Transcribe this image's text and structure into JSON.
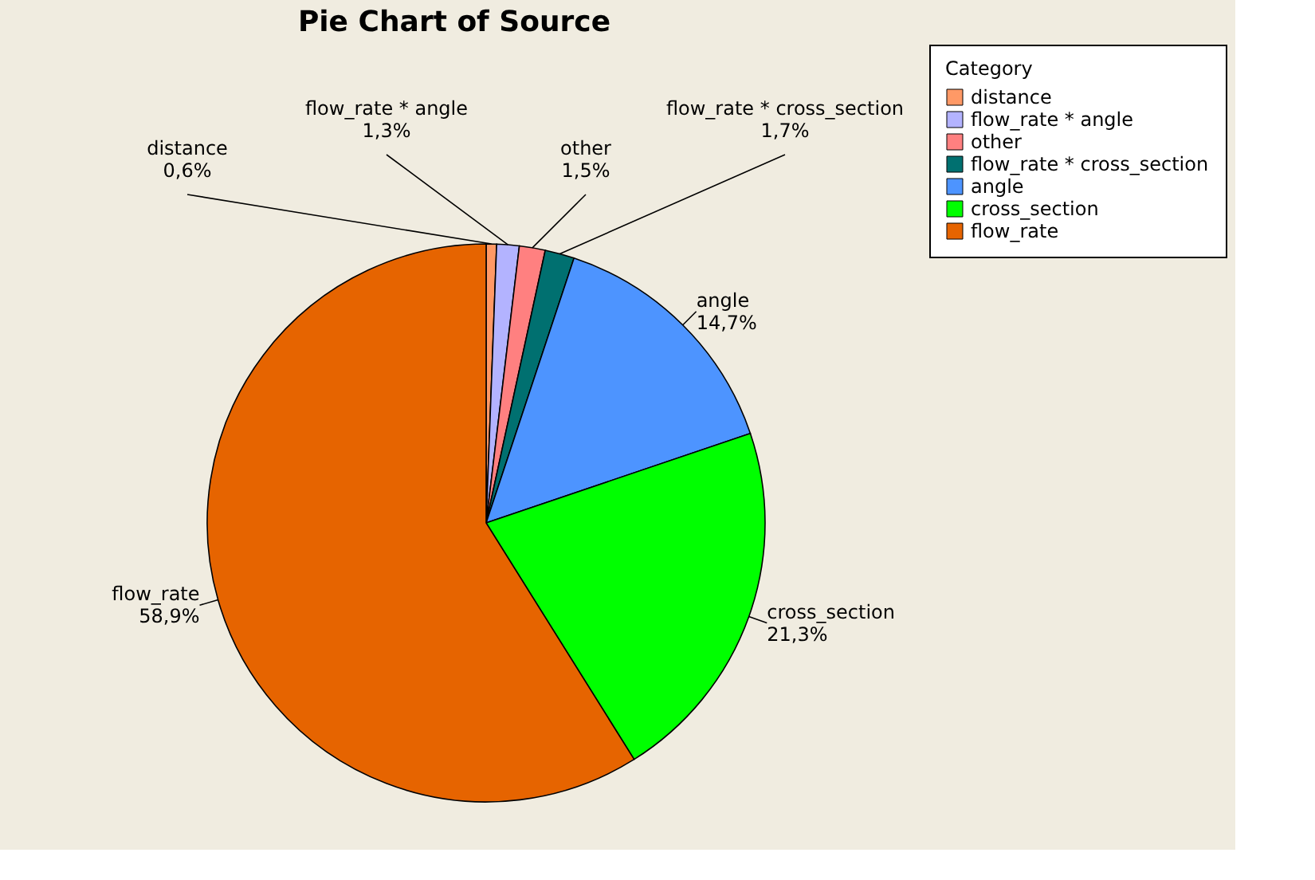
{
  "chart_data": {
    "type": "pie",
    "title": "Pie Chart of Source",
    "legend_title": "Category",
    "legend": "top right",
    "categories": [
      "distance",
      "flow_rate * angle",
      "other",
      "flow_rate * cross_section",
      "angle",
      "cross_section",
      "flow_rate"
    ],
    "values": [
      0.6,
      1.3,
      1.5,
      1.7,
      14.7,
      21.3,
      58.9
    ],
    "value_labels": [
      "0,6%",
      "1,3%",
      "1,5%",
      "1,7%",
      "14,7%",
      "21,3%",
      "58,9%"
    ],
    "colors": [
      "#ff9966",
      "#b3b3ff",
      "#ff8080",
      "#007070",
      "#4d94ff",
      "#00ff00",
      "#e66400"
    ]
  }
}
